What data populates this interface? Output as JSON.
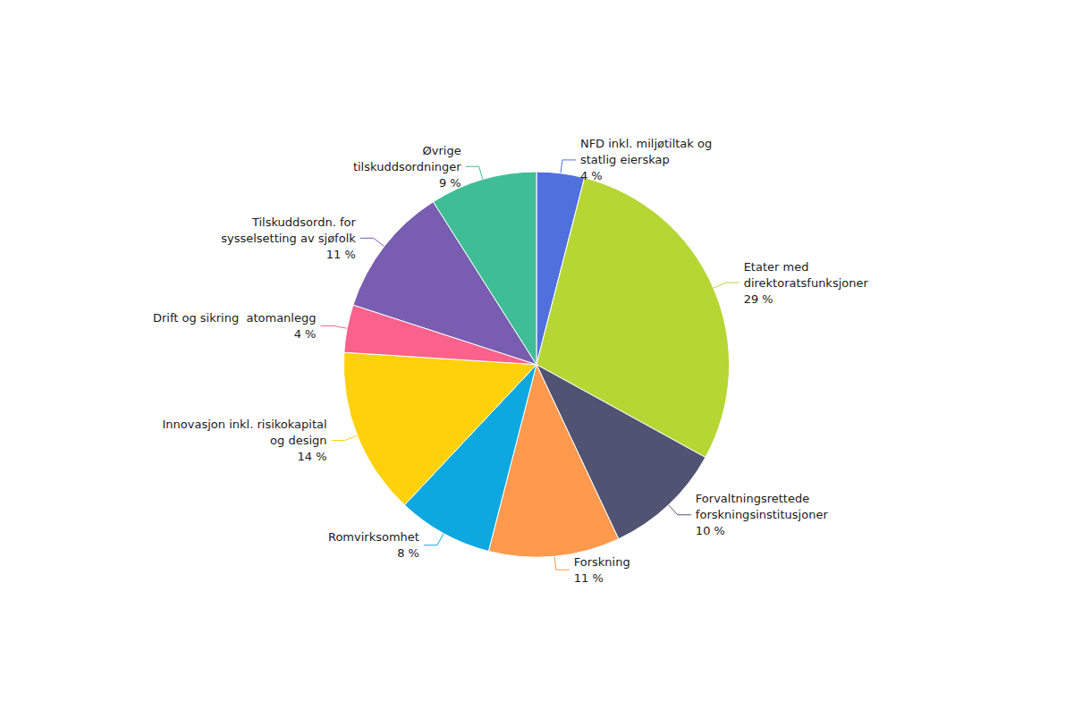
{
  "chart_data": {
    "type": "pie",
    "categories": [
      "NFD inkl. miljøtiltak og\nstatlig eierskap\n4 %",
      "Etater med\ndirektoratsfunksjoner\n29 %",
      "Forvaltningsrettede\nforskningsinstitusjoner\n10 %",
      "Forskning\n11 %",
      "Romvirksomhet\n8 %",
      "Innovasjon inkl. risikokapital\nog design\n14 %",
      "Drift og sikring  atomanlegg\n4 %",
      "Tilskuddsordn. for\nsysselsetting av sjøfolk\n11 %",
      "Øvrige\ntilskuddsordninger\n9 %"
    ],
    "values": [
      4,
      29,
      10,
      11,
      8,
      14,
      4,
      11,
      9
    ]
  }
}
